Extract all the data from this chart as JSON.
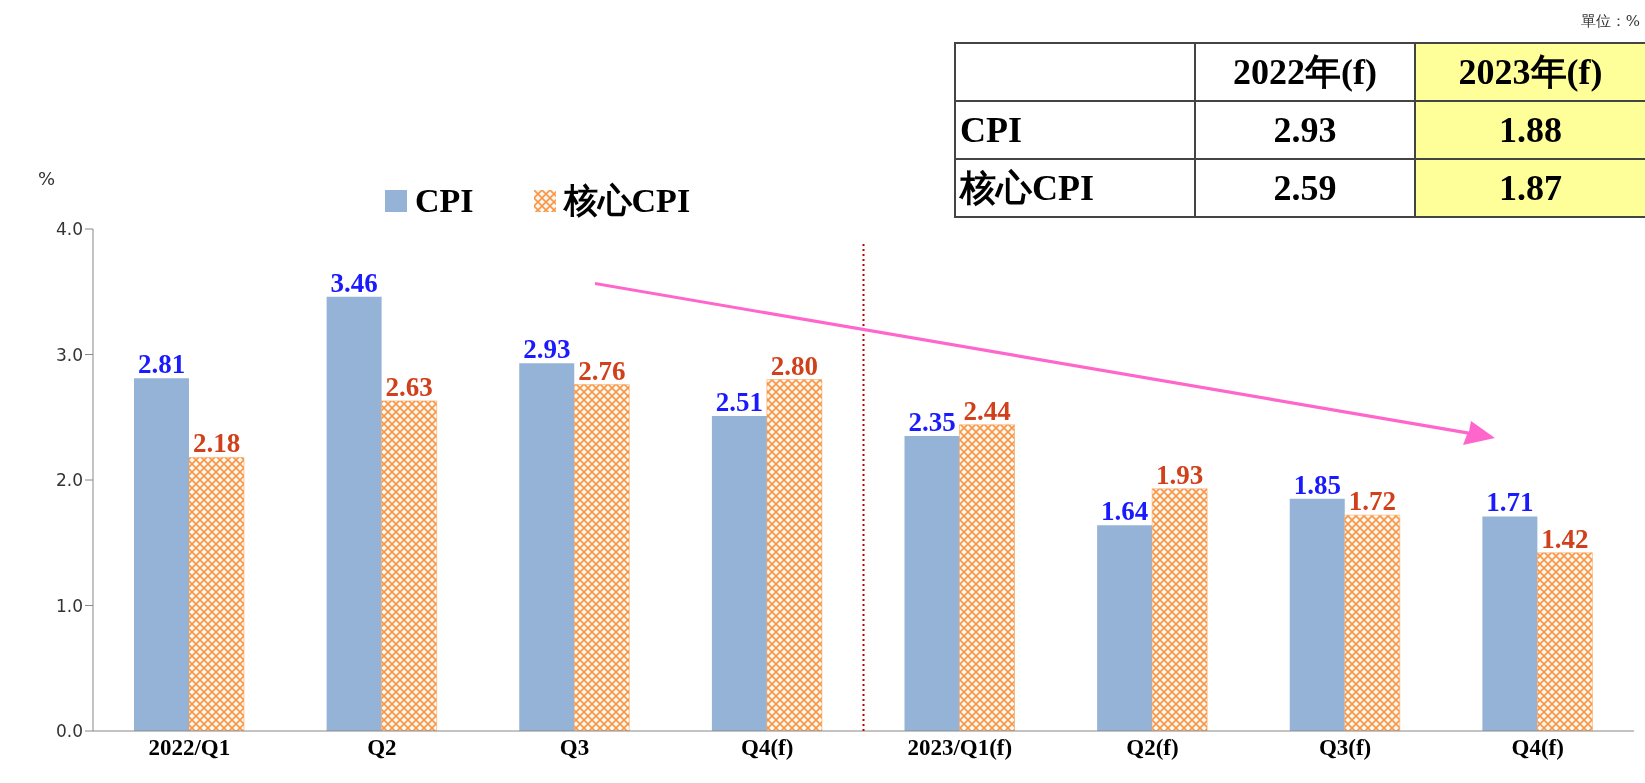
{
  "chart_data": [
    {
      "type": "bar",
      "ylabel": "%",
      "categories": [
        "2022/Q1",
        "Q2",
        "Q3",
        "Q4(f)",
        "2023/Q1(f)",
        "Q2(f)",
        "Q3(f)",
        "Q4(f)"
      ],
      "series": [
        {
          "name": "CPI",
          "color": "#95b3d7",
          "values": [
            2.81,
            3.46,
            2.93,
            2.51,
            2.35,
            1.64,
            1.85,
            1.71
          ],
          "value_labels": [
            "2.81",
            "3.46",
            "2.93",
            "2.51",
            "2.35",
            "1.64",
            "1.85",
            "1.71"
          ]
        },
        {
          "name": "核心CPI",
          "color": "#f79646",
          "values": [
            2.18,
            2.63,
            2.76,
            2.8,
            2.44,
            1.93,
            1.72,
            1.42
          ],
          "value_labels": [
            "2.18",
            "2.63",
            "2.76",
            "2.80",
            "2.44",
            "1.93",
            "1.72",
            "1.42"
          ]
        }
      ],
      "ylim": [
        0,
        4
      ],
      "yticks": [
        {
          "value": 0,
          "label": "0.0"
        },
        {
          "value": 1,
          "label": "1.0"
        },
        {
          "value": 2,
          "label": "2.0"
        },
        {
          "value": 3,
          "label": "3.0"
        },
        {
          "value": 4,
          "label": "4.0"
        }
      ],
      "legend": "top",
      "ref_lines": [
        {
          "axis": "x",
          "value": "2023/Q1(f)",
          "color": "#c00000",
          "line_style": "dotted"
        }
      ]
    },
    {
      "type": "heatmap",
      "categories": [
        "2022年(f)",
        "2023年(f)"
      ],
      "y_categories": [
        "CPI",
        "核心CPI"
      ],
      "colors": [
        "#ffffff",
        "#ffff99"
      ],
      "cells": [
        [
          2.93,
          1.88
        ],
        [
          2.59,
          1.87
        ]
      ],
      "data_labels": true,
      "annotations": [
        "單位：%"
      ]
    }
  ]
}
